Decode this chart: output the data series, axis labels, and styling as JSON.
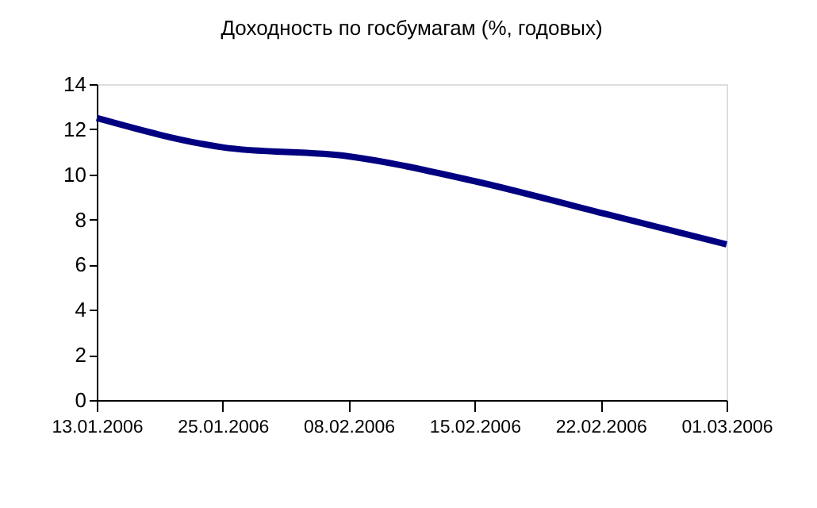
{
  "chart_data": {
    "type": "line",
    "title": "Доходность по госбумагам (%, годовых)",
    "categories": [
      "13.01.2006",
      "25.01.2006",
      "08.02.2006",
      "15.02.2006",
      "22.02.2006",
      "01.03.2006"
    ],
    "series": [
      {
        "color": "#000080",
        "values": [
          12.5,
          11.2,
          10.8,
          9.7,
          8.3,
          6.9
        ]
      }
    ],
    "ylim": [
      0,
      14
    ],
    "yticks": [
      0,
      2,
      4,
      6,
      8,
      10,
      12,
      14
    ],
    "grid": false,
    "marker": "none",
    "line_style": "solid"
  }
}
